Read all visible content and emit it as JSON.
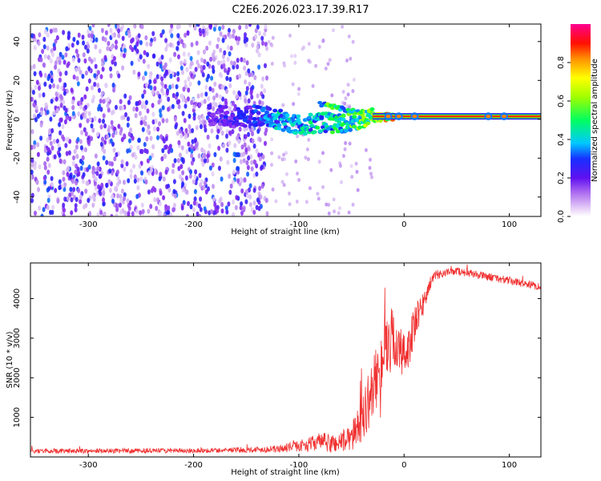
{
  "figure_title": "C2E6.2026.023.17.39.R17",
  "chart_data": [
    {
      "type": "heatmap",
      "title": "C2E6.2026.023.17.39.R17",
      "xlabel": "Height of straight line (km)",
      "ylabel": "Frequency (Hz)",
      "xlim": [
        -355,
        130
      ],
      "ylim": [
        -50,
        49
      ],
      "x_ticks": [
        -300,
        -200,
        -100,
        0,
        100
      ],
      "x_tick_labels": [
        "-300",
        "-200",
        "-100",
        "0",
        "100"
      ],
      "y_ticks": [
        -40,
        -20,
        0,
        20,
        40
      ],
      "y_tick_labels": [
        "-40",
        "-20",
        "0",
        "20",
        "40"
      ],
      "colorbar": {
        "label": "Normalized spectral amplitude",
        "range": [
          0,
          1
        ],
        "ticks": [
          0.0,
          0.2,
          0.4,
          0.6,
          0.8
        ],
        "tick_labels": [
          "0.0",
          "0.2",
          "0.4",
          "0.6",
          "0.8"
        ],
        "colors": [
          "#ffffff",
          "#c8a0f0",
          "#8020f0",
          "#1a20ff",
          "#00d0ff",
          "#00ff40",
          "#a0ff00",
          "#ffff00",
          "#ff8000",
          "#ff0000",
          "#ff0090"
        ]
      },
      "features": {
        "noise_region_x": [
          -355,
          -130
        ],
        "noise_amplitude": [
          0.05,
          0.35
        ],
        "sparse_noise_region_x": [
          -130,
          -30
        ],
        "signal_track_points": [
          {
            "x": -185,
            "y": 2,
            "amp": 0.25
          },
          {
            "x": -160,
            "y": 1,
            "amp": 0.3
          },
          {
            "x": -140,
            "y": 2,
            "amp": 0.35
          },
          {
            "x": -120,
            "y": 0,
            "amp": 0.45
          },
          {
            "x": -100,
            "y": -3,
            "amp": 0.45
          },
          {
            "x": -80,
            "y": -2,
            "amp": 0.5
          },
          {
            "x": -60,
            "y": -2,
            "amp": 0.55
          },
          {
            "x": -45,
            "y": 0,
            "amp": 0.6
          },
          {
            "x": -30,
            "y": 1,
            "amp": 0.7
          },
          {
            "x": -15,
            "y": 1,
            "amp": 0.85
          },
          {
            "x": 0,
            "y": 1.5,
            "amp": 0.95
          },
          {
            "x": 130,
            "y": 1.5,
            "amp": 0.95
          }
        ],
        "upper_branch_points": [
          {
            "x": -80,
            "y": 8
          },
          {
            "x": -60,
            "y": 5
          },
          {
            "x": -40,
            "y": 3
          }
        ]
      }
    },
    {
      "type": "line",
      "title": "",
      "xlabel": "Height of straight line (km)",
      "ylabel": "SNR (10 * v/v)",
      "xlim": [
        -355,
        130
      ],
      "ylim": [
        0,
        4900
      ],
      "x_ticks": [
        -300,
        -200,
        -100,
        0,
        100
      ],
      "x_tick_labels": [
        "-300",
        "-200",
        "-100",
        "0",
        "100"
      ],
      "y_ticks": [
        1000,
        2000,
        3000,
        4000
      ],
      "y_tick_labels": [
        "1000",
        "2000",
        "3000",
        "4000"
      ],
      "series": [
        {
          "name": "SNR",
          "color": "#f03030",
          "x": [
            -355,
            -300,
            -200,
            -150,
            -120,
            -100,
            -90,
            -80,
            -70,
            -60,
            -50,
            -45,
            -40,
            -35,
            -30,
            -25,
            -20,
            -15,
            -10,
            -5,
            0,
            10,
            20,
            25,
            30,
            40,
            50,
            60,
            70,
            80,
            90,
            100,
            110,
            120,
            130
          ],
          "y": [
            150,
            150,
            160,
            180,
            200,
            280,
            320,
            400,
            330,
            380,
            500,
            700,
            1000,
            1300,
            1700,
            2100,
            2600,
            2900,
            3000,
            2700,
            2500,
            3300,
            4000,
            4400,
            4600,
            4650,
            4700,
            4650,
            4600,
            4550,
            4500,
            4450,
            4400,
            4350,
            4300
          ],
          "noise": [
            60,
            60,
            60,
            70,
            90,
            140,
            180,
            220,
            250,
            280,
            350,
            450,
            600,
            700,
            750,
            800,
            850,
            850,
            800,
            700,
            650,
            500,
            300,
            150,
            120,
            100,
            100,
            100,
            100,
            100,
            100,
            100,
            100,
            100,
            100
          ]
        }
      ]
    }
  ]
}
